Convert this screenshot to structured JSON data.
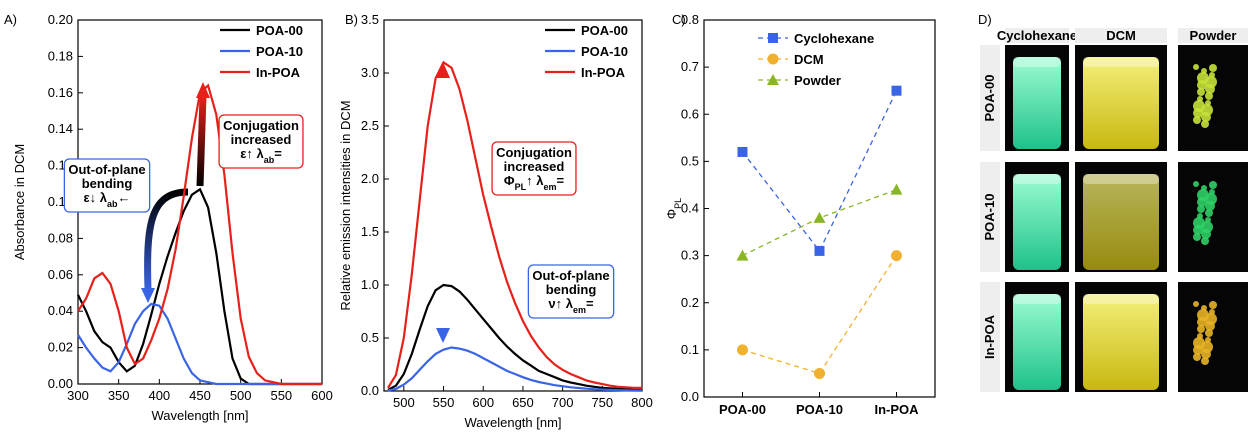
{
  "chart_data": [
    {
      "type": "line",
      "panel_label": "A)",
      "xlabel": "Wavelength [nm]",
      "ylabel": "Absorbance in DCM",
      "x": [
        300,
        310,
        320,
        330,
        340,
        350,
        360,
        370,
        380,
        390,
        400,
        410,
        420,
        430,
        440,
        450,
        460,
        470,
        480,
        490,
        500,
        510,
        520,
        530,
        540,
        550,
        560,
        570,
        580,
        590,
        600
      ],
      "series": [
        {
          "name": "POA-00",
          "color": "#000000",
          "values": [
            0.049,
            0.04,
            0.029,
            0.023,
            0.02,
            0.012,
            0.007,
            0.01,
            0.022,
            0.038,
            0.055,
            0.07,
            0.083,
            0.095,
            0.104,
            0.107,
            0.097,
            0.072,
            0.04,
            0.014,
            0.003,
            0,
            0,
            0,
            0,
            0,
            0,
            0,
            0,
            0,
            0
          ]
        },
        {
          "name": "POA-10",
          "color": "#3a64e6",
          "values": [
            0.027,
            0.02,
            0.014,
            0.009,
            0.007,
            0.012,
            0.022,
            0.033,
            0.04,
            0.044,
            0.043,
            0.036,
            0.025,
            0.014,
            0.006,
            0.002,
            0.001,
            0,
            0,
            0,
            0,
            0,
            0,
            0,
            0,
            0,
            0,
            0,
            0,
            0,
            0
          ]
        },
        {
          "name": "In-POA",
          "color": "#e8201a",
          "values": [
            0.04,
            0.047,
            0.058,
            0.061,
            0.055,
            0.04,
            0.02,
            0.011,
            0.014,
            0.024,
            0.036,
            0.052,
            0.074,
            0.103,
            0.135,
            0.16,
            0.164,
            0.148,
            0.115,
            0.072,
            0.036,
            0.015,
            0.006,
            0.002,
            0.001,
            0,
            0,
            0,
            0,
            0,
            0
          ]
        }
      ],
      "xlim": [
        300,
        600
      ],
      "xticks": [
        300,
        350,
        400,
        450,
        500,
        550,
        600
      ],
      "ylim": [
        0,
        0.2
      ],
      "yticks": [
        {
          "value": 0,
          "label": "0.00"
        },
        0.02,
        0.04,
        0.06,
        0.08,
        {
          "value": 0.1,
          "label": "0.10"
        },
        0.12,
        0.14,
        0.16,
        0.18,
        {
          "value": 0.2,
          "label": "0.20"
        }
      ],
      "legend": "upper right",
      "annotations": [
        {
          "color": "#e8201a",
          "lines": [
            [
              "Conjugation"
            ],
            [
              "increased"
            ],
            [
              "ε↑  λ",
              {
                "text": "ab",
                "sub": true
              },
              "="
            ]
          ]
        },
        {
          "color": "#3a64e6",
          "lines": [
            [
              "Out-of-plane"
            ],
            [
              "bending"
            ],
            [
              "ε↓  λ",
              {
                "text": "ab",
                "sub": true
              },
              "←"
            ]
          ]
        }
      ]
    },
    {
      "type": "line",
      "panel_label": "B)",
      "xlabel": "Wavelength [nm]",
      "ylabel": "Relative emission intensities in DCM",
      "x": [
        480,
        490,
        500,
        510,
        520,
        530,
        540,
        550,
        560,
        570,
        580,
        590,
        600,
        610,
        620,
        630,
        640,
        650,
        660,
        670,
        680,
        690,
        700,
        710,
        720,
        730,
        740,
        750,
        760,
        770,
        780,
        790,
        800
      ],
      "series": [
        {
          "name": "POA-00",
          "color": "#000000",
          "values": [
            0.01,
            0.05,
            0.16,
            0.35,
            0.58,
            0.8,
            0.95,
            1.0,
            0.99,
            0.94,
            0.86,
            0.77,
            0.68,
            0.59,
            0.5,
            0.42,
            0.35,
            0.29,
            0.24,
            0.19,
            0.16,
            0.13,
            0.1,
            0.08,
            0.065,
            0.05,
            0.04,
            0.03,
            0.025,
            0.02,
            0.015,
            0.012,
            0.01
          ]
        },
        {
          "name": "POA-10",
          "color": "#3a64e6",
          "values": [
            0.005,
            0.02,
            0.06,
            0.12,
            0.2,
            0.28,
            0.35,
            0.39,
            0.41,
            0.4,
            0.38,
            0.35,
            0.31,
            0.27,
            0.23,
            0.19,
            0.16,
            0.13,
            0.105,
            0.085,
            0.07,
            0.055,
            0.045,
            0.035,
            0.028,
            0.022,
            0.017,
            0.013,
            0.01,
            0.008,
            0.006,
            0.005,
            0.004
          ]
        },
        {
          "name": "In-POA",
          "color": "#e8201a",
          "values": [
            0.03,
            0.15,
            0.5,
            1.1,
            1.8,
            2.5,
            2.95,
            3.1,
            3.05,
            2.85,
            2.55,
            2.2,
            1.85,
            1.55,
            1.27,
            1.03,
            0.83,
            0.66,
            0.52,
            0.41,
            0.32,
            0.25,
            0.2,
            0.16,
            0.13,
            0.1,
            0.08,
            0.065,
            0.05,
            0.04,
            0.035,
            0.03,
            0.03
          ]
        }
      ],
      "xlim": [
        475,
        800
      ],
      "xticks": [
        500,
        550,
        600,
        650,
        700,
        750,
        800
      ],
      "ylim": [
        0,
        3.5
      ],
      "yticks": [
        {
          "value": 0,
          "label": "0.0"
        },
        0.5,
        {
          "value": 1,
          "label": "1.0"
        },
        1.5,
        {
          "value": 2,
          "label": "2.0"
        },
        2.5,
        {
          "value": 3,
          "label": "3.0"
        },
        3.5
      ],
      "legend": "upper right",
      "annotations": [
        {
          "color": "#e8201a",
          "lines": [
            [
              "Conjugation"
            ],
            [
              "increased"
            ],
            [
              "Φ",
              {
                "text": "PL",
                "sub": true
              },
              "↑  λ",
              {
                "text": "em",
                "sub": true
              },
              "="
            ]
          ]
        },
        {
          "color": "#3a64e6",
          "lines": [
            [
              "Out-of-plane"
            ],
            [
              "bending"
            ],
            [
              "ν↑  λ",
              {
                "text": "em",
                "sub": true
              },
              "="
            ]
          ]
        }
      ]
    },
    {
      "type": "line",
      "panel_label": "C)",
      "ylabel": [
        "Φ",
        {
          "text": "PL",
          "sub": true
        }
      ],
      "categories": [
        "POA-00",
        "POA-10",
        "In-POA"
      ],
      "series": [
        {
          "name": "Cyclohexane",
          "color": "#3a64e6",
          "marker": "square",
          "linestyle": "dashed",
          "values": [
            0.52,
            0.31,
            0.65
          ]
        },
        {
          "name": "DCM",
          "color": "#f0b030",
          "marker": "circle",
          "linestyle": "dashed",
          "values": [
            0.1,
            0.05,
            0.3
          ]
        },
        {
          "name": "Powder",
          "color": "#8ab626",
          "marker": "triangle",
          "linestyle": "dashed",
          "values": [
            0.3,
            0.38,
            0.44
          ]
        }
      ],
      "ylim": [
        0,
        0.8
      ],
      "yticks": [
        {
          "value": 0,
          "label": "0.0"
        },
        0.1,
        0.2,
        0.3,
        0.4,
        0.5,
        0.6,
        0.7,
        0.8
      ],
      "legend": "upper center"
    }
  ],
  "photo_panel": {
    "panel_label": "D)",
    "columns": [
      "Cyclohexane",
      "DCM",
      "Powder"
    ],
    "rows": [
      "POA-00",
      "POA-10",
      "In-POA"
    ]
  }
}
